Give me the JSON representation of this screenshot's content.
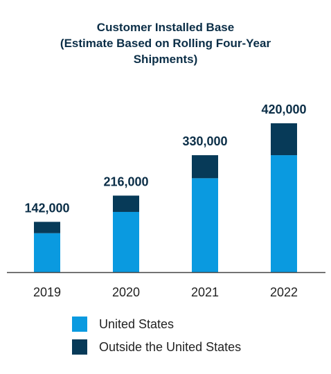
{
  "chart_data": {
    "type": "bar",
    "stacked": true,
    "title_lines": [
      "Customer Installed Base",
      "(Estimate Based on Rolling Four-Year",
      "Shipments)"
    ],
    "categories": [
      "2019",
      "2020",
      "2021",
      "2022"
    ],
    "totals_labels": [
      "142,000",
      "216,000",
      "330,000",
      "420,000"
    ],
    "series": [
      {
        "name": "United States",
        "color": "#0a9ae0",
        "values": [
          110000,
          170000,
          265000,
          330000
        ]
      },
      {
        "name": "Outside the United States",
        "color": "#073a58",
        "values": [
          32000,
          46000,
          65000,
          90000
        ]
      }
    ],
    "ylim": [
      0,
      420000
    ],
    "grid": false,
    "legend_position": "bottom"
  }
}
